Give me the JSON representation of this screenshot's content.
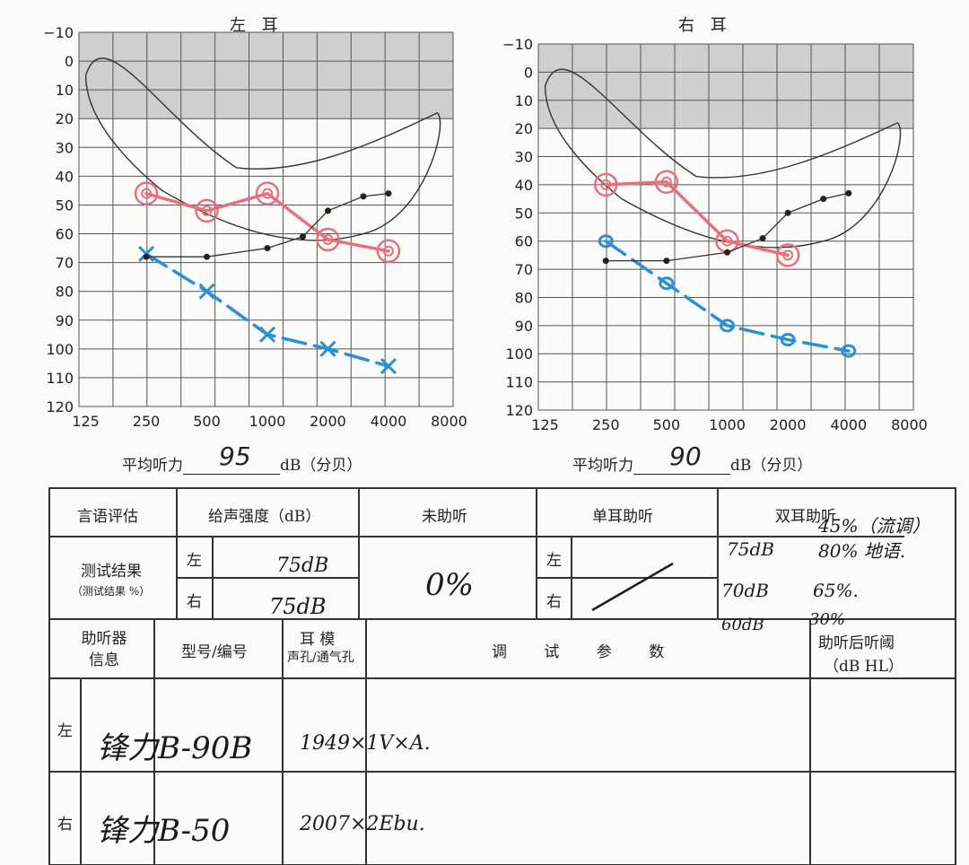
{
  "audiogram": {
    "left": {
      "title": "左 耳"
    },
    "right": {
      "title": "右 耳"
    },
    "yticks": [
      "−10",
      "0",
      "10",
      "20",
      "30",
      "40",
      "50",
      "60",
      "70",
      "80",
      "90",
      "100",
      "110",
      "120"
    ],
    "xticks": [
      "125",
      "250",
      "500",
      "1000",
      "2000",
      "4000",
      "8000"
    ],
    "avg_label": "平均听力",
    "avg_unit": "dB（分贝）",
    "left_avg": "95",
    "right_avg": "90"
  },
  "chart_data": [
    {
      "type": "line",
      "title": "左 耳",
      "x": [
        125,
        250,
        500,
        1000,
        2000,
        4000,
        8000
      ],
      "series": [
        {
          "marker": "x",
          "color": "#2a8fd6",
          "x": [
            250,
            500,
            1000,
            2000,
            4000
          ],
          "values": [
            67,
            80,
            95,
            100,
            106
          ]
        },
        {
          "marker": "circle-o",
          "color": "#e8707a",
          "x": [
            250,
            500,
            1000,
            2000,
            4000
          ],
          "values": [
            46,
            52,
            46,
            62,
            66
          ]
        },
        {
          "marker": "dot",
          "color": "#333333",
          "x": [
            250,
            500,
            1000,
            1500,
            2000,
            3000,
            4000
          ],
          "values": [
            68,
            68,
            65,
            61,
            52,
            47,
            46
          ]
        }
      ],
      "ylim": [
        -10,
        120
      ],
      "ylabel": "dB"
    },
    {
      "type": "line",
      "title": "右 耳",
      "x": [
        125,
        250,
        500,
        1000,
        2000,
        4000,
        8000
      ],
      "series": [
        {
          "marker": "o",
          "color": "#2a8fd6",
          "x": [
            250,
            500,
            1000,
            2000,
            4000
          ],
          "values": [
            60,
            75,
            90,
            95,
            99
          ]
        },
        {
          "marker": "circle-o",
          "color": "#e8707a",
          "x": [
            250,
            500,
            1000,
            2000
          ],
          "values": [
            40,
            39,
            60,
            65
          ]
        },
        {
          "marker": "dot",
          "color": "#333333",
          "x": [
            250,
            500,
            1000,
            1500,
            2000,
            3000,
            4000
          ],
          "values": [
            67,
            67,
            64,
            59,
            50,
            45,
            43
          ]
        }
      ],
      "ylim": [
        -10,
        120
      ],
      "ylabel": "dB"
    }
  ],
  "table": {
    "h_speech": "言语评估",
    "h_intensity": "给声强度（dB）",
    "h_unaided": "未助听",
    "h_mono": "单耳助听",
    "h_bin": "双耳助听",
    "result": "测试结果",
    "result_sub": "（测试结果 %）",
    "left": "左",
    "right": "右",
    "int_left": "75dB",
    "int_right": "75dB",
    "unaided": "0%",
    "bin_notes": [
      {
        "db": "75dB",
        "pct": "45%（流调）"
      },
      {
        "db": "",
        "pct": "80% 地语."
      },
      {
        "db": "70dB",
        "pct": "65%."
      },
      {
        "db": "60dB",
        "pct": "30%"
      }
    ],
    "h_info": "助听器\n信息",
    "h_model": "型号/编号",
    "h_ear": "耳 模",
    "h_ear_sub": "声孔/通气孔",
    "h_params": "调 试 参 数",
    "h_after": "助听后听阈",
    "h_after_sub": "（dB HL）",
    "model_left": "锋力B-90B",
    "model_right": "锋力B-50",
    "mold_left": "1949×1V×A.",
    "mold_right": "2007×2Ebu."
  }
}
